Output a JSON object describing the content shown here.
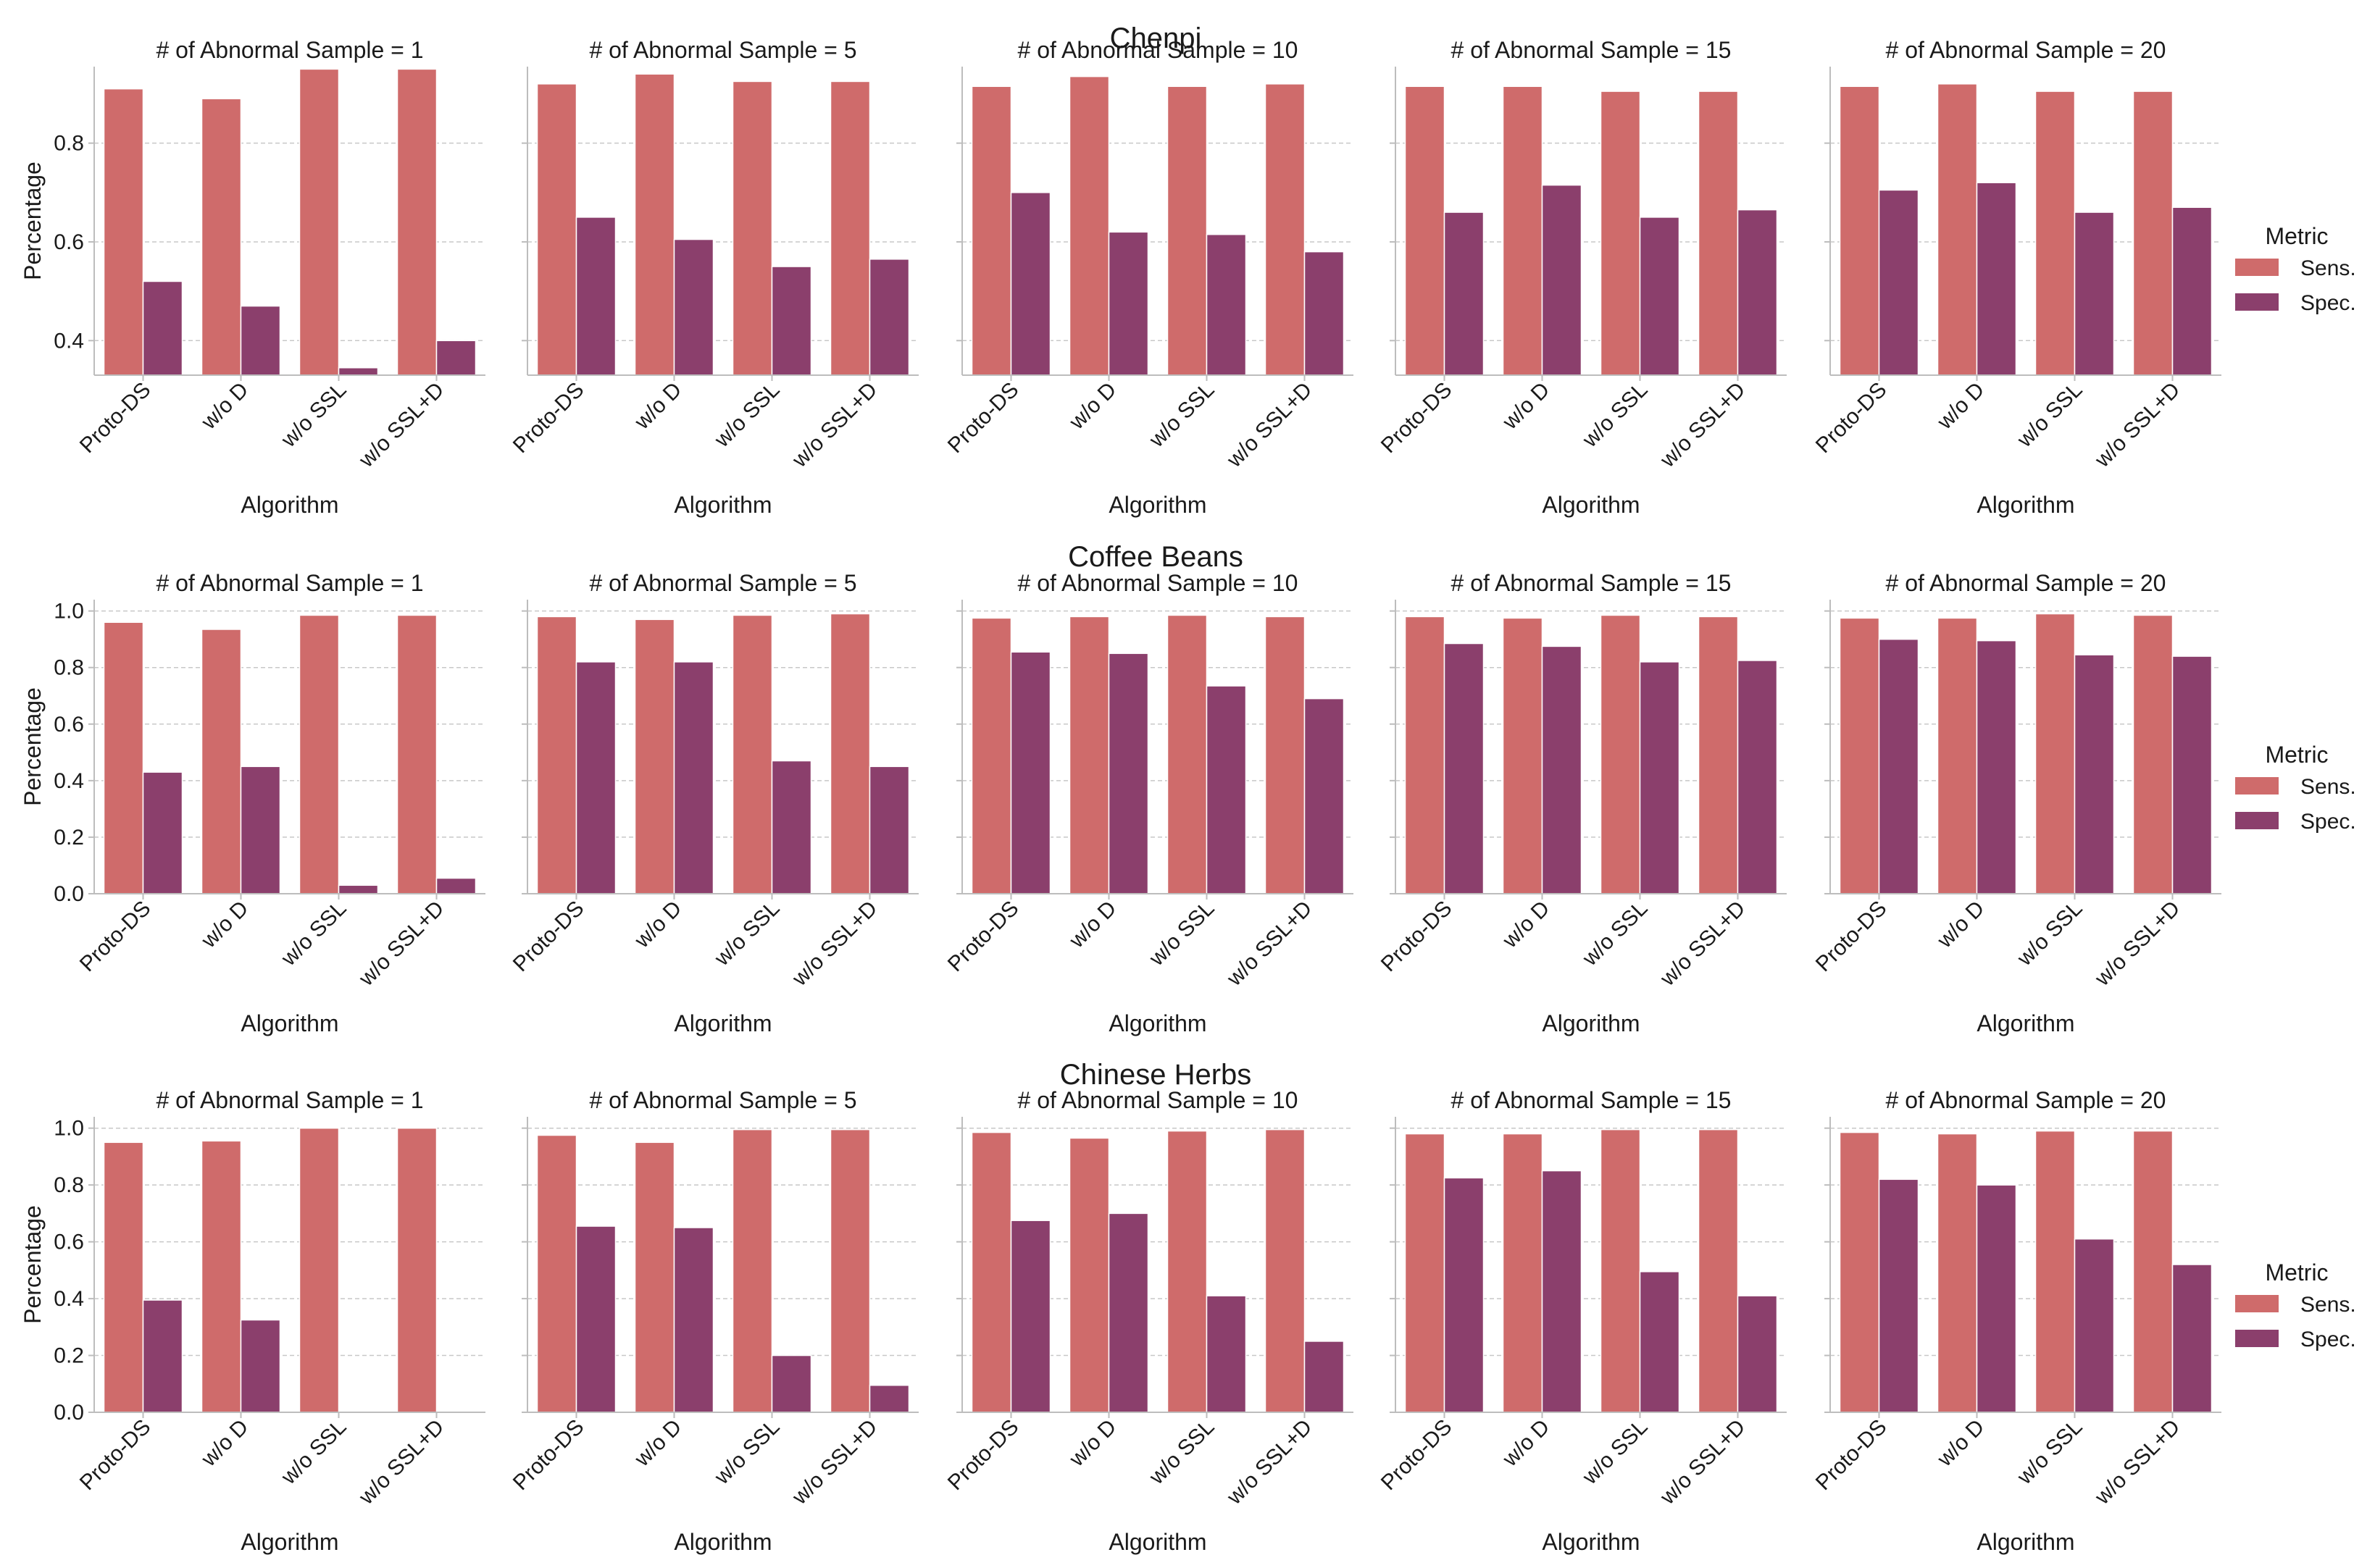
{
  "colors": {
    "sens": "#cf6b6b",
    "spec": "#8b3f6c",
    "grid": "#c8c8c8",
    "axis": "#bdbdbd"
  },
  "legend": {
    "title": "Metric",
    "entries": [
      "Sens.",
      "Spec."
    ],
    "placement": "right"
  },
  "chart_data": [
    {
      "type": "bar",
      "group": "Chenpi",
      "title": "# of Abnormal Sample = 1",
      "xlabel": "Algorithm",
      "ylabel": "Percentage",
      "ylim": [
        0.33,
        0.955
      ],
      "yticks": [
        "0.4",
        "0.6",
        "0.8"
      ],
      "yticks_num": [
        0.4,
        0.6,
        0.8
      ],
      "categories": [
        "Proto-DS",
        "w/o D",
        "w/o SSL",
        "w/o SSL+D"
      ],
      "series": [
        {
          "name": "Sens.",
          "values": [
            0.91,
            0.89,
            0.95,
            0.95
          ]
        },
        {
          "name": "Spec.",
          "values": [
            0.52,
            0.47,
            0.345,
            0.4
          ]
        }
      ]
    },
    {
      "type": "bar",
      "group": "Chenpi",
      "title": "# of Abnormal Sample = 5",
      "xlabel": "Algorithm",
      "ylabel": "",
      "ylim": [
        0.33,
        0.955
      ],
      "yticks": [],
      "yticks_num": [
        0.4,
        0.6,
        0.8
      ],
      "categories": [
        "Proto-DS",
        "w/o D",
        "w/o SSL",
        "w/o SSL+D"
      ],
      "series": [
        {
          "name": "Sens.",
          "values": [
            0.92,
            0.94,
            0.925,
            0.925
          ]
        },
        {
          "name": "Spec.",
          "values": [
            0.65,
            0.605,
            0.55,
            0.565
          ]
        }
      ]
    },
    {
      "type": "bar",
      "group": "Chenpi",
      "title": "# of Abnormal Sample = 10",
      "xlabel": "Algorithm",
      "ylabel": "",
      "ylim": [
        0.33,
        0.955
      ],
      "yticks": [],
      "yticks_num": [
        0.4,
        0.6,
        0.8
      ],
      "categories": [
        "Proto-DS",
        "w/o D",
        "w/o SSL",
        "w/o SSL+D"
      ],
      "series": [
        {
          "name": "Sens.",
          "values": [
            0.915,
            0.935,
            0.915,
            0.92
          ]
        },
        {
          "name": "Spec.",
          "values": [
            0.7,
            0.62,
            0.615,
            0.58
          ]
        }
      ]
    },
    {
      "type": "bar",
      "group": "Chenpi",
      "title": "# of Abnormal Sample = 15",
      "xlabel": "Algorithm",
      "ylabel": "",
      "ylim": [
        0.33,
        0.955
      ],
      "yticks": [],
      "yticks_num": [
        0.4,
        0.6,
        0.8
      ],
      "categories": [
        "Proto-DS",
        "w/o D",
        "w/o SSL",
        "w/o SSL+D"
      ],
      "series": [
        {
          "name": "Sens.",
          "values": [
            0.915,
            0.915,
            0.905,
            0.905
          ]
        },
        {
          "name": "Spec.",
          "values": [
            0.66,
            0.715,
            0.65,
            0.665
          ]
        }
      ]
    },
    {
      "type": "bar",
      "group": "Chenpi",
      "title": "# of Abnormal Sample = 20",
      "xlabel": "Algorithm",
      "ylabel": "",
      "ylim": [
        0.33,
        0.955
      ],
      "yticks": [],
      "yticks_num": [
        0.4,
        0.6,
        0.8
      ],
      "categories": [
        "Proto-DS",
        "w/o D",
        "w/o SSL",
        "w/o SSL+D"
      ],
      "series": [
        {
          "name": "Sens.",
          "values": [
            0.915,
            0.92,
            0.905,
            0.905
          ]
        },
        {
          "name": "Spec.",
          "values": [
            0.705,
            0.72,
            0.66,
            0.67
          ]
        }
      ]
    },
    {
      "type": "bar",
      "group": "Coffee Beans",
      "title": "# of Abnormal Sample = 1",
      "xlabel": "Algorithm",
      "ylabel": "Percentage",
      "ylim": [
        0,
        1.04
      ],
      "yticks": [
        "0.0",
        "0.2",
        "0.4",
        "0.6",
        "0.8",
        "1.0"
      ],
      "yticks_num": [
        0,
        0.2,
        0.4,
        0.6,
        0.8,
        1.0
      ],
      "categories": [
        "Proto-DS",
        "w/o D",
        "w/o SSL",
        "w/o SSL+D"
      ],
      "series": [
        {
          "name": "Sens.",
          "values": [
            0.96,
            0.935,
            0.985,
            0.985
          ]
        },
        {
          "name": "Spec.",
          "values": [
            0.43,
            0.45,
            0.03,
            0.055
          ]
        }
      ]
    },
    {
      "type": "bar",
      "group": "Coffee Beans",
      "title": "# of Abnormal Sample = 5",
      "xlabel": "Algorithm",
      "ylabel": "",
      "ylim": [
        0,
        1.04
      ],
      "yticks": [],
      "yticks_num": [
        0,
        0.2,
        0.4,
        0.6,
        0.8,
        1.0
      ],
      "categories": [
        "Proto-DS",
        "w/o D",
        "w/o SSL",
        "w/o SSL+D"
      ],
      "series": [
        {
          "name": "Sens.",
          "values": [
            0.98,
            0.97,
            0.985,
            0.99
          ]
        },
        {
          "name": "Spec.",
          "values": [
            0.82,
            0.82,
            0.47,
            0.45
          ]
        }
      ]
    },
    {
      "type": "bar",
      "group": "Coffee Beans",
      "title": "# of Abnormal Sample = 10",
      "xlabel": "Algorithm",
      "ylabel": "",
      "ylim": [
        0,
        1.04
      ],
      "yticks": [],
      "yticks_num": [
        0,
        0.2,
        0.4,
        0.6,
        0.8,
        1.0
      ],
      "categories": [
        "Proto-DS",
        "w/o D",
        "w/o SSL",
        "w/o SSL+D"
      ],
      "series": [
        {
          "name": "Sens.",
          "values": [
            0.975,
            0.98,
            0.985,
            0.98
          ]
        },
        {
          "name": "Spec.",
          "values": [
            0.855,
            0.85,
            0.735,
            0.69
          ]
        }
      ]
    },
    {
      "type": "bar",
      "group": "Coffee Beans",
      "title": "# of Abnormal Sample = 15",
      "xlabel": "Algorithm",
      "ylabel": "",
      "ylim": [
        0,
        1.04
      ],
      "yticks": [],
      "yticks_num": [
        0,
        0.2,
        0.4,
        0.6,
        0.8,
        1.0
      ],
      "categories": [
        "Proto-DS",
        "w/o D",
        "w/o SSL",
        "w/o SSL+D"
      ],
      "series": [
        {
          "name": "Sens.",
          "values": [
            0.98,
            0.975,
            0.985,
            0.98
          ]
        },
        {
          "name": "Spec.",
          "values": [
            0.885,
            0.875,
            0.82,
            0.825
          ]
        }
      ]
    },
    {
      "type": "bar",
      "group": "Coffee Beans",
      "title": "# of Abnormal Sample = 20",
      "xlabel": "Algorithm",
      "ylabel": "",
      "ylim": [
        0,
        1.04
      ],
      "yticks": [],
      "yticks_num": [
        0,
        0.2,
        0.4,
        0.6,
        0.8,
        1.0
      ],
      "categories": [
        "Proto-DS",
        "w/o D",
        "w/o SSL",
        "w/o SSL+D"
      ],
      "series": [
        {
          "name": "Sens.",
          "values": [
            0.975,
            0.975,
            0.99,
            0.985
          ]
        },
        {
          "name": "Spec.",
          "values": [
            0.9,
            0.895,
            0.845,
            0.84
          ]
        }
      ]
    },
    {
      "type": "bar",
      "group": "Chinese Herbs",
      "title": "# of Abnormal Sample = 1",
      "xlabel": "Algorithm",
      "ylabel": "Percentage",
      "ylim": [
        0,
        1.04
      ],
      "yticks": [
        "0.0",
        "0.2",
        "0.4",
        "0.6",
        "0.8",
        "1.0"
      ],
      "yticks_num": [
        0,
        0.2,
        0.4,
        0.6,
        0.8,
        1.0
      ],
      "categories": [
        "Proto-DS",
        "w/o D",
        "w/o SSL",
        "w/o SSL+D"
      ],
      "series": [
        {
          "name": "Sens.",
          "values": [
            0.95,
            0.955,
            1.0,
            1.0
          ]
        },
        {
          "name": "Spec.",
          "values": [
            0.395,
            0.325,
            0.0,
            0.0
          ]
        }
      ]
    },
    {
      "type": "bar",
      "group": "Chinese Herbs",
      "title": "# of Abnormal Sample = 5",
      "xlabel": "Algorithm",
      "ylabel": "",
      "ylim": [
        0,
        1.04
      ],
      "yticks": [],
      "yticks_num": [
        0,
        0.2,
        0.4,
        0.6,
        0.8,
        1.0
      ],
      "categories": [
        "Proto-DS",
        "w/o D",
        "w/o SSL",
        "w/o SSL+D"
      ],
      "series": [
        {
          "name": "Sens.",
          "values": [
            0.975,
            0.95,
            0.995,
            0.995
          ]
        },
        {
          "name": "Spec.",
          "values": [
            0.655,
            0.65,
            0.2,
            0.095
          ]
        }
      ]
    },
    {
      "type": "bar",
      "group": "Chinese Herbs",
      "title": "# of Abnormal Sample = 10",
      "xlabel": "Algorithm",
      "ylabel": "",
      "ylim": [
        0,
        1.04
      ],
      "yticks": [],
      "yticks_num": [
        0,
        0.2,
        0.4,
        0.6,
        0.8,
        1.0
      ],
      "categories": [
        "Proto-DS",
        "w/o D",
        "w/o SSL",
        "w/o SSL+D"
      ],
      "series": [
        {
          "name": "Sens.",
          "values": [
            0.985,
            0.965,
            0.99,
            0.995
          ]
        },
        {
          "name": "Spec.",
          "values": [
            0.675,
            0.7,
            0.41,
            0.25
          ]
        }
      ]
    },
    {
      "type": "bar",
      "group": "Chinese Herbs",
      "title": "# of Abnormal Sample = 15",
      "xlabel": "Algorithm",
      "ylabel": "",
      "ylim": [
        0,
        1.04
      ],
      "yticks": [],
      "yticks_num": [
        0,
        0.2,
        0.4,
        0.6,
        0.8,
        1.0
      ],
      "categories": [
        "Proto-DS",
        "w/o D",
        "w/o SSL",
        "w/o SSL+D"
      ],
      "series": [
        {
          "name": "Sens.",
          "values": [
            0.98,
            0.98,
            0.995,
            0.995
          ]
        },
        {
          "name": "Spec.",
          "values": [
            0.825,
            0.85,
            0.495,
            0.41
          ]
        }
      ]
    },
    {
      "type": "bar",
      "group": "Chinese Herbs",
      "title": "# of Abnormal Sample = 20",
      "xlabel": "Algorithm",
      "ylabel": "",
      "ylim": [
        0,
        1.04
      ],
      "yticks": [],
      "yticks_num": [
        0,
        0.2,
        0.4,
        0.6,
        0.8,
        1.0
      ],
      "categories": [
        "Proto-DS",
        "w/o D",
        "w/o SSL",
        "w/o SSL+D"
      ],
      "series": [
        {
          "name": "Sens.",
          "values": [
            0.985,
            0.98,
            0.99,
            0.99
          ]
        },
        {
          "name": "Spec.",
          "values": [
            0.82,
            0.8,
            0.61,
            0.52
          ]
        }
      ]
    }
  ]
}
